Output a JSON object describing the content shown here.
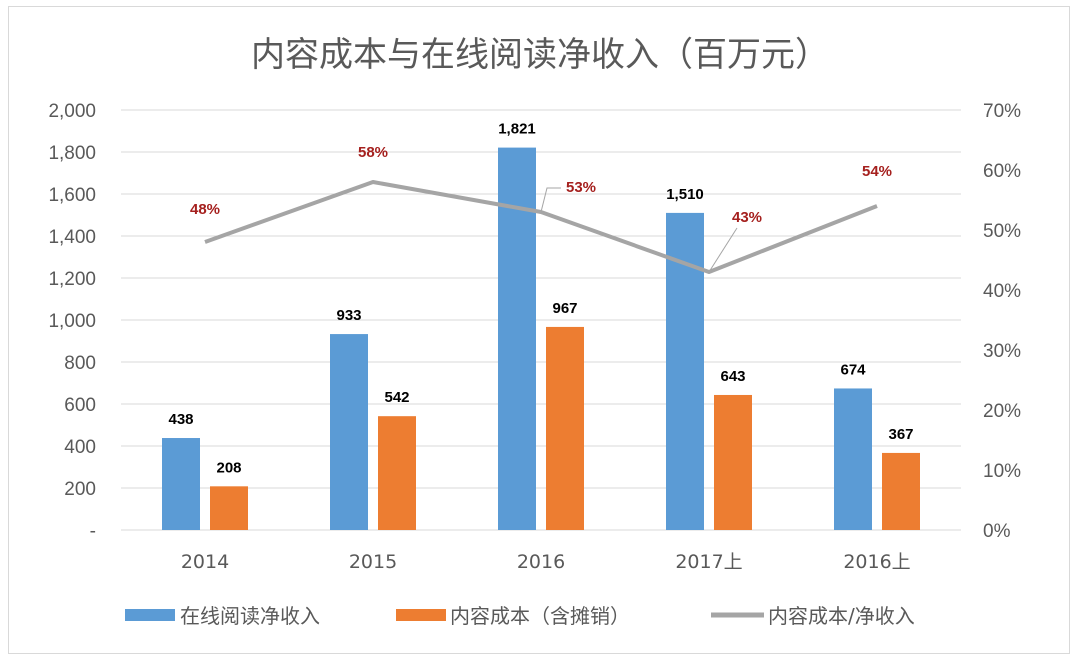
{
  "chart_data": {
    "type": "bar+line",
    "title": "内容成本与在线阅读净收入（百万元）",
    "categories": [
      "2014",
      "2015",
      "2016",
      "2017上",
      "2016上"
    ],
    "series": [
      {
        "name": "在线阅读净收入",
        "type": "bar",
        "axis": "left",
        "color": "#5b9bd5",
        "values": [
          438,
          933,
          1821,
          1510,
          674
        ],
        "labels": [
          "438",
          "933",
          "1,821",
          "1,510",
          "674"
        ]
      },
      {
        "name": "内容成本（含摊销）",
        "type": "bar",
        "axis": "left",
        "color": "#ed7d31",
        "values": [
          208,
          542,
          967,
          643,
          367
        ],
        "labels": [
          "208",
          "542",
          "967",
          "643",
          "367"
        ]
      },
      {
        "name": "内容成本/净收入",
        "type": "line",
        "axis": "right",
        "color": "#a5a5a5",
        "values": [
          48,
          58,
          53,
          43,
          54
        ],
        "labels": [
          "48%",
          "58%",
          "53%",
          "43%",
          "54%"
        ]
      }
    ],
    "left_axis": {
      "ylim": [
        0,
        2000
      ],
      "ticks": [
        "-",
        "200",
        "400",
        "600",
        "800",
        "1,000",
        "1,200",
        "1,400",
        "1,600",
        "1,800",
        "2,000"
      ]
    },
    "right_axis": {
      "ylim": [
        0,
        70
      ],
      "ticks": [
        "0%",
        "10%",
        "20%",
        "30%",
        "40%",
        "50%",
        "60%",
        "70%"
      ]
    },
    "grid": true,
    "legend": "bottom"
  }
}
